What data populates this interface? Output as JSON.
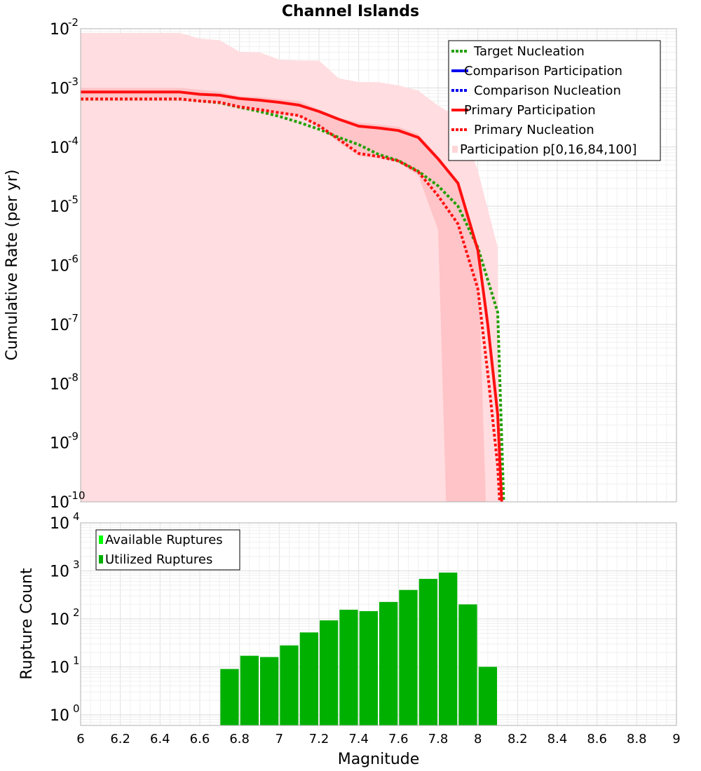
{
  "chart_data": [
    {
      "type": "line",
      "title": "Channel Islands",
      "xlabel": "",
      "ylabel": "Cumulative Rate (per yr)",
      "xlim": [
        6,
        9
      ],
      "ylim": [
        1e-10,
        0.01
      ],
      "yscale": "log",
      "grid": true,
      "legend_position": "top-right",
      "legend": [
        {
          "label": "Target Nucleation",
          "color": "#22a000",
          "style": "dotted"
        },
        {
          "label": "Comparison Participation",
          "color": "#0000ee",
          "style": "solid"
        },
        {
          "label": "Comparison Nucleation",
          "color": "#0000ee",
          "style": "dotted"
        },
        {
          "label": "Primary Participation",
          "color": "#ff1010",
          "style": "solid"
        },
        {
          "label": "Primary Nucleation",
          "color": "#ff1010",
          "style": "dotted"
        },
        {
          "label": "Participation p[0,16,84,100]",
          "color": "#ffd6d8",
          "style": "band"
        }
      ],
      "yticks": [
        {
          "base": "10",
          "exp": "-2"
        },
        {
          "base": "10",
          "exp": "-3"
        },
        {
          "base": "10",
          "exp": "-4"
        },
        {
          "base": "10",
          "exp": "-5"
        },
        {
          "base": "10",
          "exp": "-6"
        },
        {
          "base": "10",
          "exp": "-7"
        },
        {
          "base": "10",
          "exp": "-8"
        },
        {
          "base": "10",
          "exp": "-9"
        },
        {
          "base": "10",
          "exp": "-10"
        }
      ],
      "series": [
        {
          "name": "Primary Participation",
          "color": "#ff1010",
          "style": "solid",
          "points": [
            [
              6.0,
              0.00085
            ],
            [
              6.5,
              0.00085
            ],
            [
              6.6,
              0.00078
            ],
            [
              6.7,
              0.00075
            ],
            [
              6.8,
              0.00066
            ],
            [
              6.9,
              0.00062
            ],
            [
              7.0,
              0.00057
            ],
            [
              7.1,
              0.00051
            ],
            [
              7.2,
              0.0004
            ],
            [
              7.3,
              0.000295
            ],
            [
              7.4,
              0.000225
            ],
            [
              7.5,
              0.00021
            ],
            [
              7.6,
              0.00019
            ],
            [
              7.7,
              0.000145
            ],
            [
              7.8,
              6.3e-05
            ],
            [
              7.9,
              2.45e-05
            ],
            [
              8.0,
              1.8e-06
            ],
            [
              8.05,
              1e-07
            ],
            [
              8.1,
              3e-09
            ],
            [
              8.12,
              1e-10
            ]
          ]
        },
        {
          "name": "Primary Nucleation",
          "color": "#ff1010",
          "style": "dotted",
          "points": [
            [
              6.0,
              0.00065
            ],
            [
              6.5,
              0.00065
            ],
            [
              6.6,
              0.0006
            ],
            [
              6.7,
              0.00057
            ],
            [
              6.8,
              0.00048
            ],
            [
              6.9,
              0.00043
            ],
            [
              7.0,
              0.00038
            ],
            [
              7.1,
              0.00034
            ],
            [
              7.2,
              0.00023
            ],
            [
              7.3,
              0.000135
            ],
            [
              7.4,
              7.8e-05
            ],
            [
              7.5,
              6.9e-05
            ],
            [
              7.6,
              5.8e-05
            ],
            [
              7.7,
              3.8e-05
            ],
            [
              7.8,
              1.5e-05
            ],
            [
              7.9,
              5e-06
            ],
            [
              8.0,
              4e-07
            ],
            [
              8.05,
              1.5e-08
            ],
            [
              8.1,
              4e-10
            ],
            [
              8.11,
              1e-10
            ]
          ]
        },
        {
          "name": "Target Nucleation",
          "color": "#22a000",
          "style": "dotted",
          "points": [
            [
              6.0,
              0.00065
            ],
            [
              6.5,
              0.00065
            ],
            [
              6.6,
              0.0006
            ],
            [
              6.7,
              0.00056
            ],
            [
              6.8,
              0.00047
            ],
            [
              6.9,
              0.0004
            ],
            [
              7.0,
              0.00033
            ],
            [
              7.1,
              0.00026
            ],
            [
              7.2,
              0.0002
            ],
            [
              7.3,
              0.000145
            ],
            [
              7.4,
              0.00011
            ],
            [
              7.5,
              7.5e-05
            ],
            [
              7.6,
              5.9e-05
            ],
            [
              7.7,
              3.9e-05
            ],
            [
              7.8,
              2.2e-05
            ],
            [
              7.9,
              1e-05
            ],
            [
              8.0,
              2e-06
            ],
            [
              8.1,
              1.6e-07
            ],
            [
              8.13,
              1e-10
            ]
          ]
        }
      ],
      "band_outer": {
        "name": "p0-p100",
        "color": "#ffdde0",
        "upper": [
          [
            6.0,
            0.0085
          ],
          [
            6.5,
            0.0085
          ],
          [
            6.6,
            0.0068
          ],
          [
            6.7,
            0.0064
          ],
          [
            6.8,
            0.0041
          ],
          [
            6.9,
            0.004
          ],
          [
            7.0,
            0.003
          ],
          [
            7.1,
            0.0029
          ],
          [
            7.2,
            0.0029
          ],
          [
            7.3,
            0.00145
          ],
          [
            7.4,
            0.00125
          ],
          [
            7.5,
            0.00125
          ],
          [
            7.6,
            0.0011
          ],
          [
            7.7,
            0.0009
          ],
          [
            7.8,
            0.0005
          ],
          [
            7.9,
            0.00032
          ],
          [
            8.0,
            4e-05
          ],
          [
            8.1,
            2e-06
          ],
          [
            8.11,
            1e-10
          ]
        ],
        "lower": [
          [
            6.0,
            1e-10
          ],
          [
            8.11,
            1e-10
          ]
        ]
      },
      "band_inner": {
        "name": "p16-p84",
        "color": "#ffc4c8",
        "upper": [
          [
            6.0,
            0.001
          ],
          [
            6.5,
            0.001
          ],
          [
            6.6,
            0.00093
          ],
          [
            6.7,
            0.00086
          ],
          [
            6.8,
            0.00072
          ],
          [
            6.9,
            0.0007
          ],
          [
            7.0,
            0.00065
          ],
          [
            7.1,
            0.0006
          ],
          [
            7.2,
            0.00043
          ],
          [
            7.3,
            0.00031
          ],
          [
            7.4,
            0.00026
          ],
          [
            7.5,
            0.00024
          ],
          [
            7.6,
            0.00022
          ],
          [
            7.7,
            0.000165
          ],
          [
            7.8,
            7e-05
          ],
          [
            7.9,
            2.6e-05
          ],
          [
            8.0,
            1.9e-06
          ],
          [
            8.04,
            1e-10
          ]
        ],
        "lower": [
          [
            6.0,
            0.0006
          ],
          [
            6.5,
            0.0006
          ],
          [
            6.6,
            0.00058
          ],
          [
            6.7,
            0.00055
          ],
          [
            6.8,
            0.00045
          ],
          [
            6.9,
            0.00041
          ],
          [
            7.0,
            0.00036
          ],
          [
            7.1,
            0.00033
          ],
          [
            7.2,
            0.00022
          ],
          [
            7.3,
            0.00012
          ],
          [
            7.4,
            7e-05
          ],
          [
            7.5,
            6.5e-05
          ],
          [
            7.6,
            5.5e-05
          ],
          [
            7.7,
            3.3e-05
          ],
          [
            7.8,
            4e-06
          ],
          [
            7.84,
            1e-10
          ]
        ]
      }
    },
    {
      "type": "bar",
      "xlabel": "Magnitude",
      "ylabel": "Rupture Count",
      "xlim": [
        6,
        9
      ],
      "ylim": [
        0.6,
        10000
      ],
      "yscale": "log",
      "grid": true,
      "legend_position": "top-left",
      "legend": [
        {
          "label": "Available Ruptures",
          "color": "#00ff00"
        },
        {
          "label": "Utilized Ruptures",
          "color": "#00b000"
        }
      ],
      "xticks": [
        "6",
        "6.2",
        "6.4",
        "6.6",
        "6.8",
        "7",
        "7.2",
        "7.4",
        "7.6",
        "7.8",
        "8",
        "8.2",
        "8.4",
        "8.6",
        "8.8",
        "9"
      ],
      "yticks": [
        {
          "base": "10",
          "exp": "4"
        },
        {
          "base": "10",
          "exp": "3"
        },
        {
          "base": "10",
          "exp": "2"
        },
        {
          "base": "10",
          "exp": "1"
        },
        {
          "base": "10",
          "exp": "0"
        }
      ],
      "bar_width": 0.1,
      "bar_color": "#00b000",
      "x": [
        6.75,
        6.85,
        6.95,
        7.05,
        7.15,
        7.25,
        7.35,
        7.45,
        7.55,
        7.65,
        7.75,
        7.85,
        7.95,
        8.05
      ],
      "values": [
        9,
        17,
        16,
        28,
        52,
        93,
        155,
        145,
        225,
        400,
        680,
        920,
        200,
        10
      ]
    }
  ]
}
